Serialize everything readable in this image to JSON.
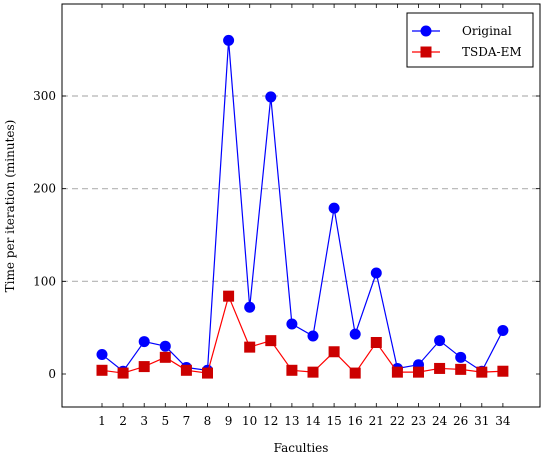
{
  "chart_data": {
    "type": "line",
    "xlabel": "Faculties",
    "ylabel": "Time per iteration (minutes)",
    "categories": [
      "1",
      "2",
      "3",
      "5",
      "7",
      "8",
      "9",
      "10",
      "12",
      "13",
      "14",
      "15",
      "16",
      "21",
      "22",
      "23",
      "24",
      "26",
      "31",
      "34"
    ],
    "ylim": [
      -35,
      395
    ],
    "yticks": [
      0,
      100,
      200,
      300
    ],
    "grid": "horizontal dashed at y ticks",
    "legend_position": "top-right",
    "series": [
      {
        "name": "Original",
        "color": "#0000ff",
        "marker": "circle",
        "values": [
          21,
          3,
          35,
          30,
          7,
          4,
          360,
          72,
          299,
          54,
          41,
          179,
          43,
          109,
          6,
          10,
          36,
          18,
          3,
          47
        ]
      },
      {
        "name": "TSDA-EM",
        "color": "#ff0000",
        "marker": "square",
        "values": [
          4,
          1,
          8,
          18,
          4,
          1,
          84,
          29,
          36,
          4,
          2,
          24,
          1,
          34,
          2,
          2,
          6,
          5,
          2,
          3
        ]
      }
    ]
  }
}
